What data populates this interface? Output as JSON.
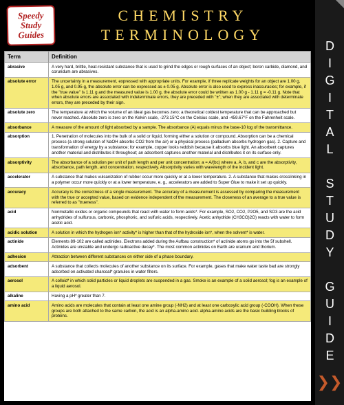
{
  "badge": {
    "l1": "Speedy",
    "l2": "Study",
    "l3": "Guides"
  },
  "title": {
    "l1": "CHEMISTRY",
    "l2": "TERMINOLOGY"
  },
  "sidebar": {
    "text": "DIGITAL STUDY GUIDE",
    "arrow": "❯❯"
  },
  "table": {
    "headers": {
      "term": "Term",
      "def": "Definition"
    },
    "rows": [
      {
        "t": "abrasive",
        "d": "A very hard, brittle, heat-resistant substance that is used to grind the edges or rough surfaces of an object; boron carbide, diamond, and corundum are abrasives."
      },
      {
        "t": "absolute error",
        "d": "The uncertainty in a measurement, expressed with appropriate units. For example, if three replicate weights for an object are 1.00 g, 1.05 g, and 0.95 g, the absolute error can be expressed as ± 0.05 g. Absolute error is also used to express inaccuracies; for example, if the \"true value\" is 1.11 g and the measured value is 1.00 g, the absolute error could be written as 1.00 g - 1.11 g = -0.11 g. Note that when absolute errors are associated with indeterminate errors, they are preceded with \"±\"; when they are associated with determinate errors, they are preceded by their sign."
      },
      {
        "t": "absolute zero",
        "d": "The temperature at which the volume of an ideal gas becomes zero; a theoretical coldest temperature that can be approached but never reached. Absolute zero is zero on the Kelvin scale, -273.15°C on the Celsius scale, and -459.67°F on the Fahrenheit scale."
      },
      {
        "t": "absorbance",
        "d": "A measure of the amount of light absorbed by a sample. The absorbance (A) equals minus the base-10 log of the transmittance."
      },
      {
        "t": "absorption",
        "d": "1. Penetration of molecules into the bulk of a solid or liquid, forming either a solution or compound. Absorption can be a chemical process (a strong solution of NaOH absorbs CO2 from the air) or a physical process (palladium absorbs hydrogen gas). 2. Capture and transformation of energy by a substance; for example, copper looks reddish because it absorbs blue light. An absorbent captures another material and distributes it throughout; an adsorbent captures another material and distributes it on its surface only."
      },
      {
        "t": "absorptivity",
        "d": "The absorbance of a solution per unit of path length and per unit concentration; a = A/(bc) where a, A, b, and c are the absorptivity, absorbance, path length, and concentration, respectively. Absorptivity varies with wavelength of the incident light."
      },
      {
        "t": "accelerator",
        "d": "A substance that makes vulcanization of rubber occur more quickly or at a lower temperature. 2. A substance that makes crosslinking in a polymer occur more quickly or at a lower temperature, e. g., accelerators are added to Super Glue to make it set up quickly."
      },
      {
        "t": "accuracy",
        "d": "Accuracy is the correctness of a single measurement. The accuracy of a measurement is assessed by comparing the measurement with the true or accepted value, based on evidence independent of the measurement. The closeness of an average to a true value is referred to as \"trueness\"."
      },
      {
        "t": "acid",
        "d": "Nonmetallic oxides or organic compounds that react with water to form acids*. For example, SO2, CO2, P2O5, and SO3 are the acid anhydrides of sulfurous, carbonic, phosphoric, and sulfuric acids, respectively. Acetic anhydride (CH3CO)2O) reacts with water to form acetic acid."
      },
      {
        "t": "acidic solution",
        "d": "A solution in which the hydrogen ion* activity* is higher than that of the hydroxide ion*, when the solvent* is water."
      },
      {
        "t": "actinide",
        "d": "Elements 89-102 are called actinides. Electrons added during the Aufbau construction* of actinide atoms go into the 5f subshell. Actinides are unstable and undergo radioactive decay*. The most common actinides on Earth are uranium and thorium."
      },
      {
        "t": "adhesion",
        "d": "Attraction between different substances on either side of a phase boundary."
      },
      {
        "t": "adsorbent",
        "d": "A substance that collects molecules of another substance on its surface. For example, gases that make water taste bad are strongly adsorbed on activated charcoal* granules in water filters."
      },
      {
        "t": "aerosol",
        "d": "A colloid* in which solid particles or liquid droplets are suspended in a gas. Smoke is an example of a solid aerosol; fog is an example of a liquid aerosol."
      },
      {
        "t": "alkaline",
        "d": "Having a pH* greater than 7."
      },
      {
        "t": "amino acid",
        "d": "Amino acids are molecules that contain at least one amine group (-NH2) and at least one carboxylic acid group (-COOH). When these groups are both attached to the same carbon, the acid is an alpha-amino acid. alpha-amino acids are the basic building blocks of proteins."
      }
    ]
  },
  "style": {
    "badge_border": "#b22222",
    "title_color": "#ffd966",
    "row_even_bg": "#ffffff",
    "row_odd_bg": "#f5ea7a",
    "header_bg": "#d4d4d4",
    "arrow_color": "#c55a2b"
  }
}
